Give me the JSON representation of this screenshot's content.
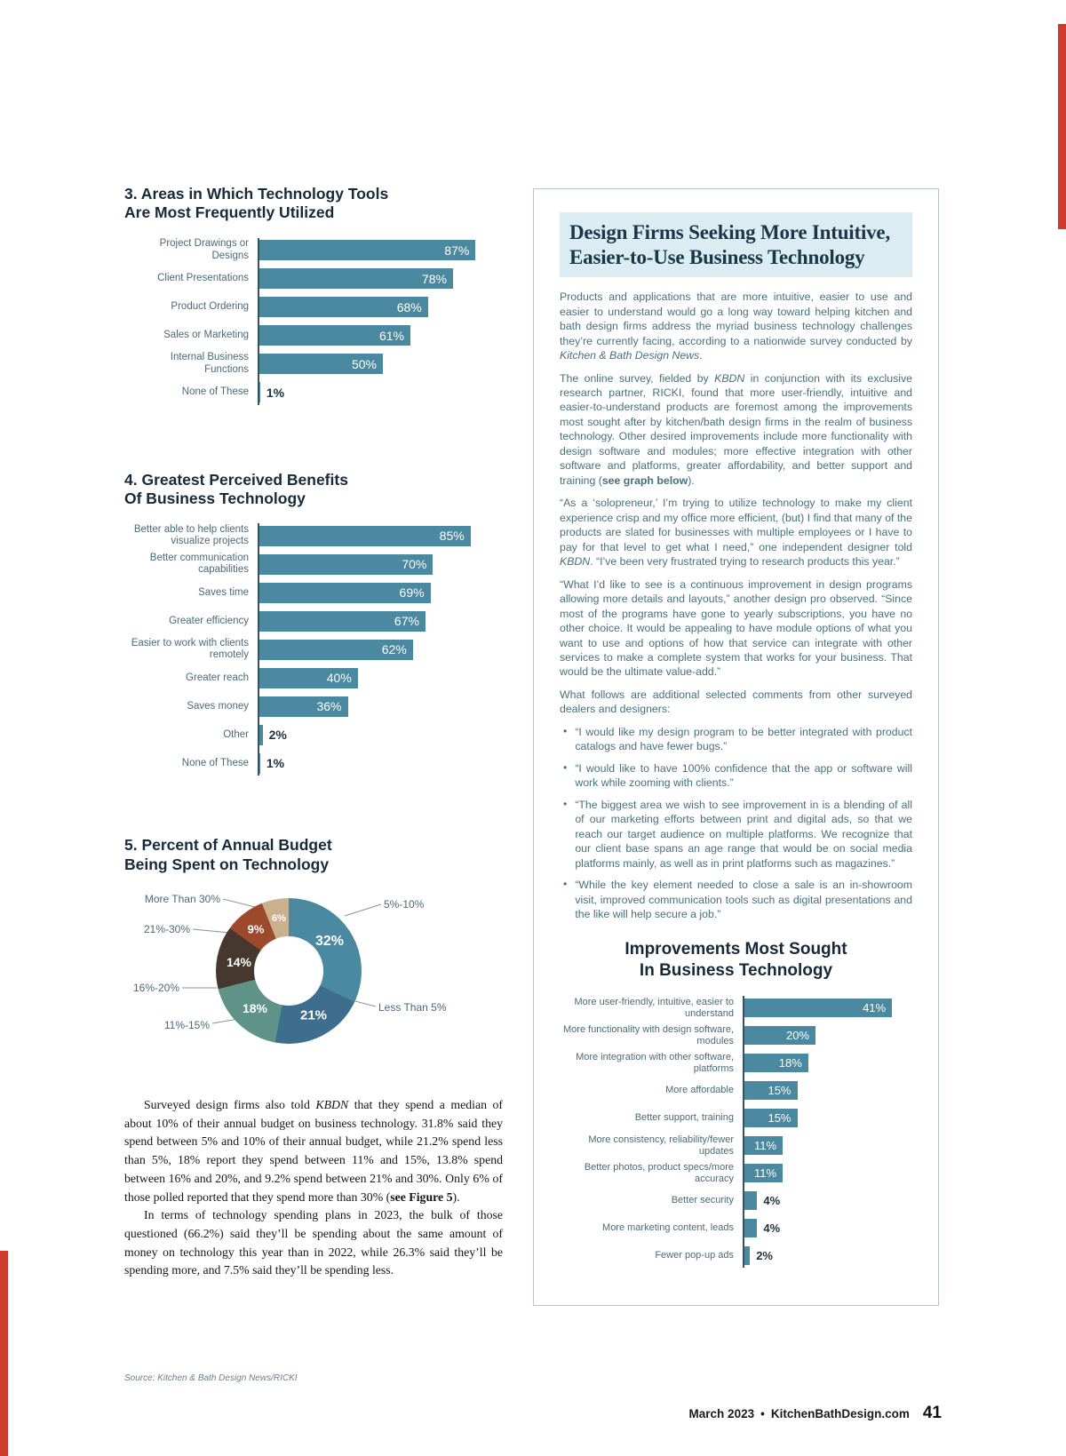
{
  "chart_data": [
    {
      "id": "areas-chart",
      "type": "bar",
      "orientation": "horizontal",
      "title": "3. Areas in Which Technology Tools Are Most Frequently Utilized",
      "title_lines": [
        "3. Areas in Which Technology Tools",
        "Are Most Frequently Utilized"
      ],
      "categories": [
        "Project Drawings or Designs",
        "Client Presentations",
        "Product Ordering",
        "Sales or Marketing",
        "Internal Business Functions",
        "None of These"
      ],
      "values": [
        87,
        78,
        68,
        61,
        50,
        1
      ],
      "value_labels": [
        "87%",
        "78%",
        "68%",
        "61%",
        "50%",
        "1%"
      ],
      "unit": "%",
      "bar_color": "#4b89a0",
      "xlim": [
        0,
        100
      ]
    },
    {
      "id": "benefits-chart",
      "type": "bar",
      "orientation": "horizontal",
      "title": "4. Greatest Perceived Benefits Of Business Technology",
      "title_lines": [
        "4. Greatest Perceived Benefits",
        "Of Business Technology"
      ],
      "categories": [
        "Better able to help clients visualize projects",
        "Better communication capabilities",
        "Saves time",
        "Greater efficiency",
        "Easier to work with clients remotely",
        "Greater reach",
        "Saves money",
        "Other",
        "None of These"
      ],
      "values": [
        85,
        70,
        69,
        67,
        62,
        40,
        36,
        2,
        1
      ],
      "value_labels": [
        "85%",
        "70%",
        "69%",
        "67%",
        "62%",
        "40%",
        "36%",
        "2%",
        "1%"
      ],
      "unit": "%",
      "bar_color": "#4b89a0",
      "xlim": [
        0,
        100
      ]
    },
    {
      "id": "budget-donut",
      "type": "pie",
      "subtype": "donut",
      "title": "5. Percent of Annual Budget Being Spent on Technology",
      "title_lines": [
        "5. Percent of Annual Budget",
        "Being Spent on Technology"
      ],
      "categories": [
        "5%-10%",
        "Less Than 5%",
        "11%-15%",
        "16%-20%",
        "21%-30%",
        "More Than 30%"
      ],
      "values": [
        32,
        21,
        18,
        14,
        9,
        6
      ],
      "value_labels": [
        "32%",
        "21%",
        "18%",
        "14%",
        "9%",
        "6%"
      ],
      "colors": [
        "#4b89a0",
        "#3e6e8e",
        "#5f9387",
        "#46382f",
        "#9c4a2b",
        "#c9b18f"
      ]
    },
    {
      "id": "improvements-chart",
      "type": "bar",
      "orientation": "horizontal",
      "title": "Improvements Most Sought In Business Technology",
      "title_lines": [
        "Improvements Most Sought",
        "In Business Technology"
      ],
      "categories": [
        "More user-friendly, intuitive, easier to understand",
        "More functionality with design software, modules",
        "More integration with other software, platforms",
        "More affordable",
        "Better support, training",
        "More consistency, reliability/fewer updates",
        "Better photos, product specs/more accuracy",
        "Better security",
        "More marketing content, leads",
        "Fewer pop-up ads"
      ],
      "values": [
        41,
        20,
        18,
        15,
        15,
        11,
        11,
        4,
        4,
        2
      ],
      "value_labels": [
        "41%",
        "20%",
        "18%",
        "15%",
        "15%",
        "11%",
        "11%",
        "4%",
        "4%",
        "2%"
      ],
      "unit": "%",
      "bar_color": "#4b89a0",
      "xlim": [
        0,
        50
      ]
    }
  ],
  "article": {
    "title_lines": [
      "Design Firms Seeking More Intuitive,",
      "Easier-to-Use Business Technology"
    ],
    "paragraphs": [
      [
        {
          "t": "Products and applications that are more intuitive, easier to use and easier to understand would go a long way toward helping kitchen and bath design firms address the myriad business technology challenges they’re currently facing, according to a nationwide survey conducted by "
        },
        {
          "t": "Kitchen & Bath Design News",
          "i": true
        },
        {
          "t": "."
        }
      ],
      [
        {
          "t": "The online survey, fielded by "
        },
        {
          "t": "KBDN",
          "i": true
        },
        {
          "t": " in conjunction with its exclusive research partner, RICKI, found that more user-friendly, intuitive and easier-to-understand products are foremost among the improvements most sought after by kitchen/bath design firms in the realm of business technology. Other desired improvements include more functionality with design software and modules; more effective integration with other software and platforms, greater affordability, and better support and training ("
        },
        {
          "t": "see graph below",
          "b": true
        },
        {
          "t": ")."
        }
      ],
      [
        {
          "t": "“As a ‘solopreneur,’ I’m trying to utilize technology to make my client experience crisp and my office more efficient, (but) I find that many of the products are slated for businesses with multiple employees or I have to pay for that level to get what I need,” one independent designer told "
        },
        {
          "t": "KBDN",
          "i": true
        },
        {
          "t": ". “I’ve been very frustrated trying to research products this year.”"
        }
      ],
      [
        {
          "t": "“What I’d like to see is a continuous improvement in design programs allowing more details and layouts,” another design pro observed. “Since most of the programs have gone to yearly subscriptions, you have no other choice. It would be appealing to have module options of what you want to use and options of how that service can integrate with other services to make a complete system that works for your business. That would be the ultimate value-add.”"
        }
      ],
      [
        {
          "t": "What follows are additional selected comments from other surveyed dealers and designers:"
        }
      ]
    ],
    "bullet_marker": "•",
    "bullets": [
      "“I would like my design program to be better integrated with product catalogs and have fewer bugs.”",
      "“I would like to have 100% confidence that the app or software will work while zooming with clients.”",
      "“The biggest area we wish to see improvement in is a blending of all of our marketing efforts between print and digital ads, so that we reach our target audience on multiple platforms. We recognize that our client base spans an age range that would be on social media platforms mainly, as well as in print platforms such as magazines.”",
      "“While the key element needed to close a sale is an in-showroom visit, improved communication tools such as digital presentations and the like will help secure a job.”"
    ]
  },
  "left_text": {
    "paragraphs": [
      [
        {
          "t": "Surveyed design firms also told "
        },
        {
          "t": "KBDN",
          "i": true
        },
        {
          "t": " that they spend a median of about 10% of their annual budget on business technology. 31.8% said they spend between 5% and 10% of their annual budget, while 21.2% spend less than 5%, 18% report they spend between 11% and 15%, 13.8% spend between 16% and 20%, and 9.2% spend between 21% and 30%. Only 6% of those polled reported that they spend more than 30% ("
        },
        {
          "t": "see Figure 5",
          "b": true
        },
        {
          "t": ")."
        }
      ],
      [
        {
          "t": "In terms of technology spending plans in 2023, the bulk of those questioned (66.2%) said they’ll be spending about the same amount of money on technology this year than in 2022, while 26.3% said they’ll be spending more, and 7.5% said they’ll be spending less."
        }
      ]
    ]
  },
  "source_note": "Source: Kitchen & Bath Design News/RICKI",
  "footer": {
    "date": "March 2023",
    "separator": "•",
    "site": "KitchenBathDesign.com",
    "page_number": "41"
  }
}
